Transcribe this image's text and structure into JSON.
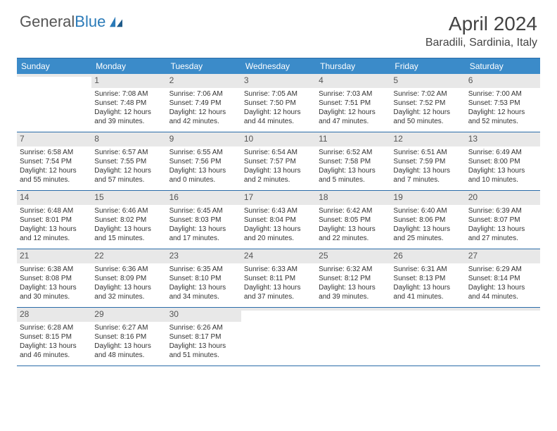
{
  "logo": {
    "part1": "General",
    "part2": "Blue"
  },
  "title": "April 2024",
  "location": "Baradili, Sardinia, Italy",
  "colors": {
    "header_bg": "#3b8bc9",
    "header_text": "#ffffff",
    "border": "#2a6ca8",
    "daynum_bg": "#e8e8e8",
    "text": "#333333",
    "logo_gray": "#555555",
    "logo_blue": "#2a7ab8"
  },
  "day_headers": [
    "Sunday",
    "Monday",
    "Tuesday",
    "Wednesday",
    "Thursday",
    "Friday",
    "Saturday"
  ],
  "weeks": [
    [
      {
        "n": "",
        "sr": "",
        "ss": "",
        "dl1": "",
        "dl2": ""
      },
      {
        "n": "1",
        "sr": "Sunrise: 7:08 AM",
        "ss": "Sunset: 7:48 PM",
        "dl1": "Daylight: 12 hours",
        "dl2": "and 39 minutes."
      },
      {
        "n": "2",
        "sr": "Sunrise: 7:06 AM",
        "ss": "Sunset: 7:49 PM",
        "dl1": "Daylight: 12 hours",
        "dl2": "and 42 minutes."
      },
      {
        "n": "3",
        "sr": "Sunrise: 7:05 AM",
        "ss": "Sunset: 7:50 PM",
        "dl1": "Daylight: 12 hours",
        "dl2": "and 44 minutes."
      },
      {
        "n": "4",
        "sr": "Sunrise: 7:03 AM",
        "ss": "Sunset: 7:51 PM",
        "dl1": "Daylight: 12 hours",
        "dl2": "and 47 minutes."
      },
      {
        "n": "5",
        "sr": "Sunrise: 7:02 AM",
        "ss": "Sunset: 7:52 PM",
        "dl1": "Daylight: 12 hours",
        "dl2": "and 50 minutes."
      },
      {
        "n": "6",
        "sr": "Sunrise: 7:00 AM",
        "ss": "Sunset: 7:53 PM",
        "dl1": "Daylight: 12 hours",
        "dl2": "and 52 minutes."
      }
    ],
    [
      {
        "n": "7",
        "sr": "Sunrise: 6:58 AM",
        "ss": "Sunset: 7:54 PM",
        "dl1": "Daylight: 12 hours",
        "dl2": "and 55 minutes."
      },
      {
        "n": "8",
        "sr": "Sunrise: 6:57 AM",
        "ss": "Sunset: 7:55 PM",
        "dl1": "Daylight: 12 hours",
        "dl2": "and 57 minutes."
      },
      {
        "n": "9",
        "sr": "Sunrise: 6:55 AM",
        "ss": "Sunset: 7:56 PM",
        "dl1": "Daylight: 13 hours",
        "dl2": "and 0 minutes."
      },
      {
        "n": "10",
        "sr": "Sunrise: 6:54 AM",
        "ss": "Sunset: 7:57 PM",
        "dl1": "Daylight: 13 hours",
        "dl2": "and 2 minutes."
      },
      {
        "n": "11",
        "sr": "Sunrise: 6:52 AM",
        "ss": "Sunset: 7:58 PM",
        "dl1": "Daylight: 13 hours",
        "dl2": "and 5 minutes."
      },
      {
        "n": "12",
        "sr": "Sunrise: 6:51 AM",
        "ss": "Sunset: 7:59 PM",
        "dl1": "Daylight: 13 hours",
        "dl2": "and 7 minutes."
      },
      {
        "n": "13",
        "sr": "Sunrise: 6:49 AM",
        "ss": "Sunset: 8:00 PM",
        "dl1": "Daylight: 13 hours",
        "dl2": "and 10 minutes."
      }
    ],
    [
      {
        "n": "14",
        "sr": "Sunrise: 6:48 AM",
        "ss": "Sunset: 8:01 PM",
        "dl1": "Daylight: 13 hours",
        "dl2": "and 12 minutes."
      },
      {
        "n": "15",
        "sr": "Sunrise: 6:46 AM",
        "ss": "Sunset: 8:02 PM",
        "dl1": "Daylight: 13 hours",
        "dl2": "and 15 minutes."
      },
      {
        "n": "16",
        "sr": "Sunrise: 6:45 AM",
        "ss": "Sunset: 8:03 PM",
        "dl1": "Daylight: 13 hours",
        "dl2": "and 17 minutes."
      },
      {
        "n": "17",
        "sr": "Sunrise: 6:43 AM",
        "ss": "Sunset: 8:04 PM",
        "dl1": "Daylight: 13 hours",
        "dl2": "and 20 minutes."
      },
      {
        "n": "18",
        "sr": "Sunrise: 6:42 AM",
        "ss": "Sunset: 8:05 PM",
        "dl1": "Daylight: 13 hours",
        "dl2": "and 22 minutes."
      },
      {
        "n": "19",
        "sr": "Sunrise: 6:40 AM",
        "ss": "Sunset: 8:06 PM",
        "dl1": "Daylight: 13 hours",
        "dl2": "and 25 minutes."
      },
      {
        "n": "20",
        "sr": "Sunrise: 6:39 AM",
        "ss": "Sunset: 8:07 PM",
        "dl1": "Daylight: 13 hours",
        "dl2": "and 27 minutes."
      }
    ],
    [
      {
        "n": "21",
        "sr": "Sunrise: 6:38 AM",
        "ss": "Sunset: 8:08 PM",
        "dl1": "Daylight: 13 hours",
        "dl2": "and 30 minutes."
      },
      {
        "n": "22",
        "sr": "Sunrise: 6:36 AM",
        "ss": "Sunset: 8:09 PM",
        "dl1": "Daylight: 13 hours",
        "dl2": "and 32 minutes."
      },
      {
        "n": "23",
        "sr": "Sunrise: 6:35 AM",
        "ss": "Sunset: 8:10 PM",
        "dl1": "Daylight: 13 hours",
        "dl2": "and 34 minutes."
      },
      {
        "n": "24",
        "sr": "Sunrise: 6:33 AM",
        "ss": "Sunset: 8:11 PM",
        "dl1": "Daylight: 13 hours",
        "dl2": "and 37 minutes."
      },
      {
        "n": "25",
        "sr": "Sunrise: 6:32 AM",
        "ss": "Sunset: 8:12 PM",
        "dl1": "Daylight: 13 hours",
        "dl2": "and 39 minutes."
      },
      {
        "n": "26",
        "sr": "Sunrise: 6:31 AM",
        "ss": "Sunset: 8:13 PM",
        "dl1": "Daylight: 13 hours",
        "dl2": "and 41 minutes."
      },
      {
        "n": "27",
        "sr": "Sunrise: 6:29 AM",
        "ss": "Sunset: 8:14 PM",
        "dl1": "Daylight: 13 hours",
        "dl2": "and 44 minutes."
      }
    ],
    [
      {
        "n": "28",
        "sr": "Sunrise: 6:28 AM",
        "ss": "Sunset: 8:15 PM",
        "dl1": "Daylight: 13 hours",
        "dl2": "and 46 minutes."
      },
      {
        "n": "29",
        "sr": "Sunrise: 6:27 AM",
        "ss": "Sunset: 8:16 PM",
        "dl1": "Daylight: 13 hours",
        "dl2": "and 48 minutes."
      },
      {
        "n": "30",
        "sr": "Sunrise: 6:26 AM",
        "ss": "Sunset: 8:17 PM",
        "dl1": "Daylight: 13 hours",
        "dl2": "and 51 minutes."
      },
      {
        "n": "",
        "sr": "",
        "ss": "",
        "dl1": "",
        "dl2": ""
      },
      {
        "n": "",
        "sr": "",
        "ss": "",
        "dl1": "",
        "dl2": ""
      },
      {
        "n": "",
        "sr": "",
        "ss": "",
        "dl1": "",
        "dl2": ""
      },
      {
        "n": "",
        "sr": "",
        "ss": "",
        "dl1": "",
        "dl2": ""
      }
    ]
  ]
}
